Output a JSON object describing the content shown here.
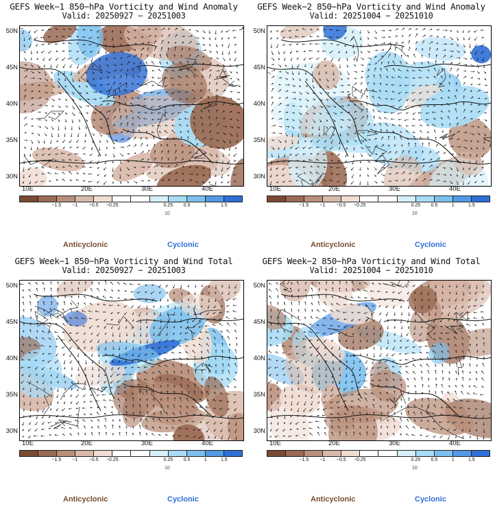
{
  "panels": [
    {
      "id": "w1-anom",
      "title": "GEFS Week−1 850−hPa Vorticity and Wind Anomaly",
      "valid": "Valid: 20250927 − 20251003",
      "variant": "anomaly",
      "seed": 11
    },
    {
      "id": "w2-anom",
      "title": "GEFS Week−2 850−hPa Vorticity and Wind Anomaly",
      "valid": "Valid: 20251004 − 20251010",
      "variant": "anomaly2",
      "seed": 23
    },
    {
      "id": "w1-total",
      "title": "GEFS Week−1 850−hPa Vorticity and Wind Total",
      "valid": "Valid: 20250927 − 20251003",
      "variant": "total",
      "seed": 37
    },
    {
      "id": "w2-total",
      "title": "GEFS Week−2 850−hPa Vorticity and Wind Total",
      "valid": "Valid: 20251004 − 20251010",
      "variant": "total2",
      "seed": 53
    }
  ],
  "map": {
    "lat_labels": [
      "50N",
      "45N",
      "40N",
      "35N",
      "30N"
    ],
    "lon_labels": [
      "10E",
      "20E",
      "30E",
      "40E"
    ]
  },
  "colorbar": {
    "colors": [
      "#7b4a32",
      "#9a6a53",
      "#b98f7b",
      "#d8b9aa",
      "#f0ddd4",
      "#ffffff",
      "#ffffff",
      "#d6f0fa",
      "#a8dcf5",
      "#7cc0ee",
      "#5399e6",
      "#2f6fd6"
    ],
    "ticks": [
      "−1.5",
      "−1",
      "−0.5",
      "−0.25",
      "0.25",
      "0.5",
      "1",
      "1.5"
    ],
    "unit": "10"
  },
  "legend": {
    "anticyclonic": "Anticyclonic",
    "cyclonic": "Cyclonic"
  }
}
